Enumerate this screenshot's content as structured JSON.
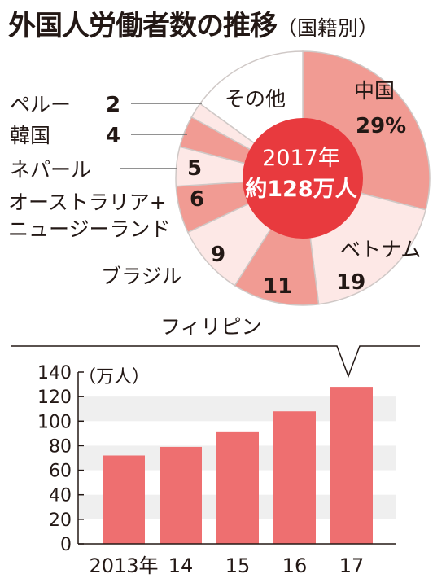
{
  "title": {
    "main": "外国人労働者数の推移",
    "sub": "（国籍別）"
  },
  "chart_data": [
    {
      "type": "pie",
      "center_label": {
        "year": "2017年",
        "total": "約128万人"
      },
      "slices": [
        {
          "name": "中国",
          "value": 29,
          "label": "29%",
          "color": "#f19b93"
        },
        {
          "name": "ベトナム",
          "value": 19,
          "label": "19",
          "color": "#fde8e6"
        },
        {
          "name": "フィリピン",
          "value": 11,
          "label": "11",
          "color": "#f19b93"
        },
        {
          "name": "ブラジル",
          "value": 9,
          "label": "9",
          "color": "#fde8e6"
        },
        {
          "name": "オーストラリア+ニュージーランド",
          "value": 6,
          "label": "6",
          "color": "#f19b93"
        },
        {
          "name": "ネパール",
          "value": 5,
          "label": "5",
          "color": "#fde8e6"
        },
        {
          "name": "韓国",
          "value": 4,
          "label": "4",
          "color": "#f19b93"
        },
        {
          "name": "ペルー",
          "value": 2,
          "label": "2",
          "color": "#fde8e6"
        },
        {
          "name": "その他",
          "value": 15,
          "label": "",
          "color": "#ffffff"
        }
      ],
      "names_display": {
        "china": "中国",
        "vietnam": "ベトナム",
        "philippines": "フィリピン",
        "brazil": "ブラジル",
        "au_nz_line1": "オーストラリア+",
        "au_nz_line2": "ニュージーランド",
        "nepal": "ネパール",
        "korea": "韓国",
        "peru": "ペルー",
        "other": "その他"
      },
      "colors": {
        "center": "#e83a3e",
        "outline": "#cfc8c6",
        "leader": "#6f6f6f"
      }
    },
    {
      "type": "bar",
      "ylabel": "（万人）",
      "categories": [
        "2013年",
        "14",
        "15",
        "16",
        "17"
      ],
      "values": [
        72,
        79,
        91,
        108,
        128
      ],
      "ylim": [
        0,
        140
      ],
      "yticks": [
        0,
        20,
        40,
        60,
        80,
        100,
        120,
        140
      ],
      "grid": "alternating-bands",
      "colors": {
        "bar": "#ee6f70",
        "band": "#efefef",
        "axis": "#231815"
      }
    }
  ]
}
